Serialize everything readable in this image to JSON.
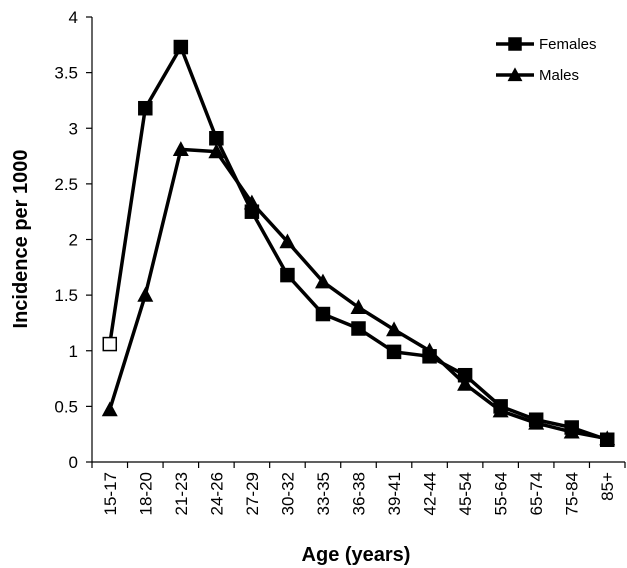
{
  "chart_data": {
    "type": "line",
    "title": "",
    "xlabel": "Age (years)",
    "ylabel": "Incidence per 1000",
    "ylim": [
      0,
      4
    ],
    "yticks": [
      "0",
      "0.5",
      "1",
      "1.5",
      "2",
      "2.5",
      "3",
      "3.5",
      "4"
    ],
    "categories": [
      "15-17",
      "18-20",
      "21-23",
      "24-26",
      "27-29",
      "30-32",
      "33-35",
      "36-38",
      "39-41",
      "42-44",
      "45-54",
      "55-64",
      "65-74",
      "75-84",
      "85+"
    ],
    "grid": false,
    "legend_position": "top-right",
    "series": [
      {
        "name": "Females",
        "marker": "square",
        "color": "#000000",
        "values": [
          1.06,
          3.18,
          3.73,
          2.91,
          2.25,
          1.68,
          1.33,
          1.2,
          0.99,
          0.95,
          0.78,
          0.5,
          0.38,
          0.31,
          0.2
        ],
        "hollow_points": [
          0
        ]
      },
      {
        "name": "Males",
        "marker": "triangle",
        "color": "#000000",
        "values": [
          0.47,
          1.5,
          2.81,
          2.79,
          2.33,
          1.98,
          1.62,
          1.39,
          1.19,
          1.0,
          0.7,
          0.46,
          0.35,
          0.27,
          0.21
        ]
      }
    ]
  }
}
